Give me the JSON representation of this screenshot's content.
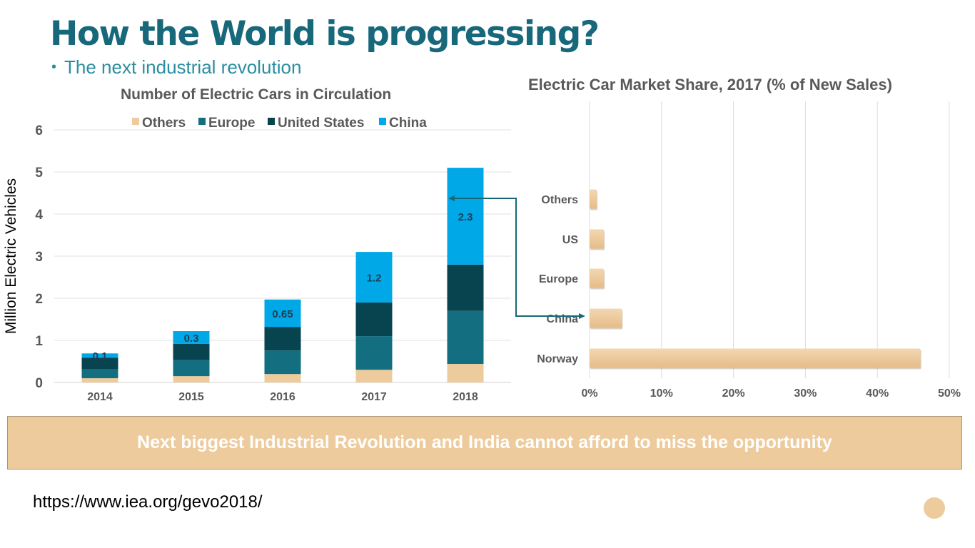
{
  "slide": {
    "title": "How the World is progressing?",
    "bullet": "The next industrial revolution",
    "banner_text": "Next biggest Industrial Revolution and India cannot afford to miss the opportunity",
    "source_url": "https://www.iea.org/gevo2018/",
    "colors": {
      "title": "#17687a",
      "others": "#eecb9c",
      "europe": "#136f80",
      "united_states": "#07444f",
      "china": "#00a8e8",
      "banner": "#eecb9c",
      "connector": "#17687a"
    }
  },
  "chart_data": [
    {
      "type": "bar",
      "stacked": true,
      "title": "Number of Electric Cars in Circulation",
      "xlabel": "",
      "ylabel": "Million Electric Vehicles",
      "ylim": [
        0,
        6
      ],
      "yticks": [
        "0",
        "1",
        "2",
        "3",
        "4",
        "5",
        "6"
      ],
      "grid": true,
      "legend_position": "top",
      "categories": [
        "2014",
        "2015",
        "2016",
        "2017",
        "2018"
      ],
      "series": [
        {
          "name": "Others",
          "values": [
            0.1,
            0.15,
            0.2,
            0.3,
            0.44
          ]
        },
        {
          "name": "Europe",
          "values": [
            0.21,
            0.38,
            0.56,
            0.8,
            1.26
          ]
        },
        {
          "name": "United States",
          "values": [
            0.28,
            0.39,
            0.56,
            0.8,
            1.1
          ]
        },
        {
          "name": "China",
          "values": [
            0.1,
            0.3,
            0.65,
            1.2,
            2.3
          ]
        }
      ],
      "data_labels": [
        "0.1",
        "0.3",
        "0.65",
        "1.2",
        "2.3"
      ]
    },
    {
      "type": "bar",
      "orientation": "horizontal",
      "title": "Electric Car Market Share, 2017 (% of New Sales)",
      "xlabel": "",
      "ylabel": "",
      "xlim": [
        0,
        50
      ],
      "xticks": [
        "0%",
        "10%",
        "20%",
        "30%",
        "40%",
        "50%"
      ],
      "grid": true,
      "categories": [
        "Others",
        "US",
        "Europe",
        "China",
        "Norway"
      ],
      "values": [
        1,
        2,
        2,
        4.5,
        46
      ]
    }
  ]
}
